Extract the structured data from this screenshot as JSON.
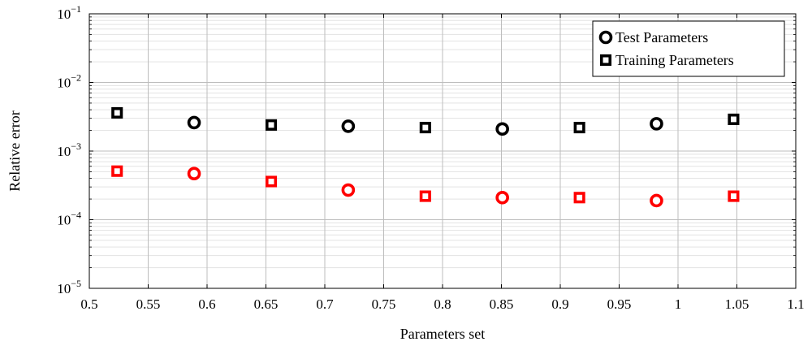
{
  "chart_data": {
    "type": "scatter",
    "title": "",
    "xlabel": "Parameters set",
    "ylabel": "Relative error",
    "xlim": [
      0.5,
      1.1
    ],
    "ylim": [
      1e-05,
      0.1
    ],
    "yscale": "log",
    "grid": true,
    "legend_position": "top-right",
    "x_ticks": [
      "0.5",
      "0.55",
      "0.6",
      "0.65",
      "0.7",
      "0.75",
      "0.8",
      "0.85",
      "0.9",
      "0.95",
      "1",
      "1.05",
      "1.1"
    ],
    "y_ticks": [
      {
        "base": "10",
        "exp": "−5"
      },
      {
        "base": "10",
        "exp": "−4"
      },
      {
        "base": "10",
        "exp": "−3"
      },
      {
        "base": "10",
        "exp": "−2"
      },
      {
        "base": "10",
        "exp": "−1"
      }
    ],
    "legend": [
      {
        "label": "Test Parameters",
        "marker": "circle"
      },
      {
        "label": "Training Parameters",
        "marker": "square"
      }
    ],
    "series": [
      {
        "marker": "square",
        "color": "#000000",
        "x": [
          0.5236,
          0.6545,
          0.7854,
          0.9163,
          1.0472
        ],
        "y": [
          0.0036,
          0.0024,
          0.0022,
          0.0022,
          0.0029
        ]
      },
      {
        "marker": "circle",
        "color": "#000000",
        "x": [
          0.589,
          0.7199,
          0.8508,
          0.9817
        ],
        "y": [
          0.0026,
          0.0023,
          0.0021,
          0.0025
        ]
      },
      {
        "marker": "square",
        "color": "#ff0000",
        "x": [
          0.5236,
          0.6545,
          0.7854,
          0.9163,
          1.0472
        ],
        "y": [
          0.00051,
          0.00036,
          0.00022,
          0.00021,
          0.00022
        ]
      },
      {
        "marker": "circle",
        "color": "#ff0000",
        "x": [
          0.589,
          0.7199,
          0.8508,
          0.9817
        ],
        "y": [
          0.00047,
          0.00027,
          0.00021,
          0.00019
        ]
      }
    ]
  }
}
